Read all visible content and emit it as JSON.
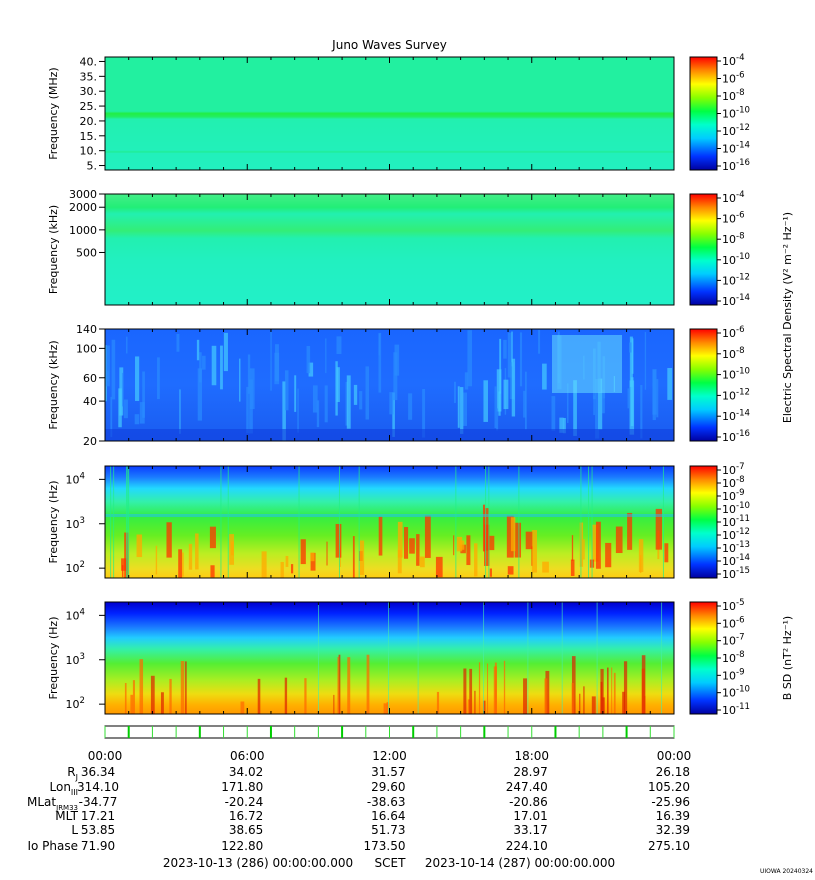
{
  "chart_data": {
    "type": "heatmap",
    "title": "Juno Waves Survey",
    "panels": [
      {
        "id": "mhz",
        "ylabel": "Frequency (MHz)",
        "yticks": [
          "40.",
          "35.",
          "30.",
          "25.",
          "20.",
          "15.",
          "10.",
          "5."
        ],
        "ytick_values": [
          40,
          35,
          30,
          25,
          20,
          15,
          10,
          5
        ],
        "ylim": [
          3.5,
          41.5
        ],
        "scale": "linear",
        "colorbar": {
          "sup": [
            "-4",
            "-6",
            "-8",
            "-10",
            "-12",
            "-14",
            "-16"
          ]
        }
      },
      {
        "id": "khz_high",
        "ylabel": "Frequency (kHz)",
        "yticks": [
          "3000",
          "2000",
          "1000",
          "500"
        ],
        "ytick_values": [
          3000,
          2000,
          1000,
          500
        ],
        "ylim": [
          100,
          3000
        ],
        "scale": "log",
        "colorbar": {
          "sup": [
            "-4",
            "-6",
            "-8",
            "-10",
            "-12",
            "-14"
          ]
        }
      },
      {
        "id": "khz_low",
        "ylabel": "Frequency (kHz)",
        "yticks": [
          "140",
          "100",
          "60",
          "40",
          "20"
        ],
        "ytick_values": [
          140,
          100,
          60,
          40,
          20
        ],
        "ylim": [
          20,
          140
        ],
        "scale": "log",
        "colorbar": {
          "sup": [
            "-6",
            "-8",
            "-10",
            "-12",
            "-14",
            "-16"
          ]
        }
      },
      {
        "id": "hz_e",
        "ylabel": "Frequency (Hz)",
        "yticks": [
          {
            "base": "10",
            "sup": "4"
          },
          {
            "base": "10",
            "sup": "3"
          },
          {
            "base": "10",
            "sup": "2"
          }
        ],
        "ytick_values": [
          10000,
          1000,
          100
        ],
        "ylim": [
          60,
          20000
        ],
        "scale": "log",
        "colorbar": {
          "sup": [
            "-7",
            "-8",
            "-9",
            "-10",
            "-11",
            "-12",
            "-13",
            "-14",
            "-15"
          ]
        }
      },
      {
        "id": "hz_b",
        "ylabel": "Frequency (Hz)",
        "yticks": [
          {
            "base": "10",
            "sup": "4"
          },
          {
            "base": "10",
            "sup": "3"
          },
          {
            "base": "10",
            "sup": "2"
          }
        ],
        "ytick_values": [
          10000,
          1000,
          100
        ],
        "ylim": [
          60,
          20000
        ],
        "scale": "log",
        "colorbar": {
          "sup": [
            "-5",
            "-6",
            "-7",
            "-8",
            "-9",
            "-10",
            "-11"
          ]
        }
      }
    ],
    "colorbar_base": "10",
    "electric_colorbar_label": "Electric Spectral Density (V² m⁻² Hz⁻¹)",
    "magnetic_colorbar_label": "B SD (nT² Hz⁻¹)",
    "x_ticks": [
      "00:00",
      "06:00",
      "12:00",
      "18:00",
      "00:00"
    ],
    "x_hours": [
      0,
      6,
      12,
      18,
      24
    ],
    "ephemeris": {
      "rows": [
        {
          "label": "RJ",
          "values": [
            "36.34",
            "34.02",
            "31.57",
            "28.97",
            "26.18"
          ]
        },
        {
          "label": "LonIII",
          "values": [
            "314.10",
            "171.80",
            "29.60",
            "247.40",
            "105.20"
          ]
        },
        {
          "label": "MLatJRM33",
          "values": [
            "-34.77",
            "-20.24",
            "-38.63",
            "-20.86",
            "-25.96"
          ]
        },
        {
          "label": "MLT",
          "values": [
            "17.21",
            "16.72",
            "16.64",
            "17.01",
            "16.39"
          ]
        },
        {
          "label": "L",
          "values": [
            "53.85",
            "38.65",
            "51.73",
            "33.17",
            "32.39"
          ]
        },
        {
          "label": "Io Phase",
          "values": [
            "71.90",
            "122.80",
            "173.50",
            "224.10",
            "275.10"
          ]
        }
      ]
    },
    "time_range": {
      "start": "2023-10-13 (286) 00:00:00.000",
      "label": "SCET",
      "end": "2023-10-14 (287) 00:00:00.000"
    },
    "footer_tag": "UIOWA 20240324"
  }
}
